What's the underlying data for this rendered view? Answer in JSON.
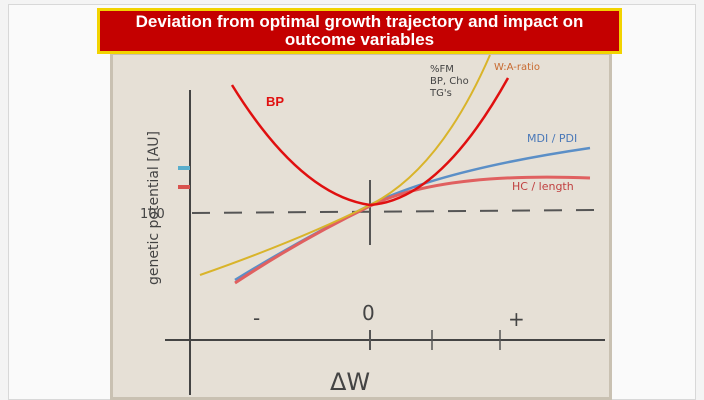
{
  "slide": {
    "title": "Deviation from optimal growth trajectory and impact on outcome variables",
    "labels": {
      "bp": "BP",
      "fm": "%FM",
      "bp_cho": "BP, Cho",
      "tg": "TG's",
      "wa": "W:A-ratio",
      "mdi": "MDI / PDI",
      "hc": "HC / length",
      "hundred": "100",
      "y_axis": "genetic potential [AU]",
      "minus": "-",
      "zero": "0",
      "plus": "+",
      "x_axis": "ΔW"
    }
  }
}
